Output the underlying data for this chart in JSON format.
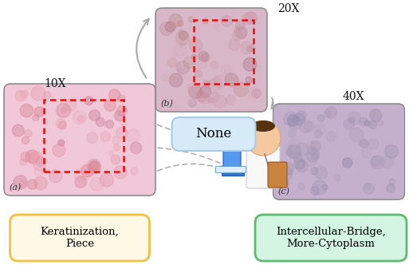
{
  "bg_color": "#ffffff",
  "fig_width": 5.18,
  "fig_height": 3.32,
  "dpi": 100,
  "label_20x": "20X",
  "label_10x": "10X",
  "label_40x": "40X",
  "label_a": "(a)",
  "label_b": "(b)",
  "label_c": "(c)",
  "none_box_text": "None",
  "none_box_color": "#d6eaf8",
  "none_box_edge": "#a9cce3",
  "left_box_text": "Keratinization,\nPiece",
  "left_box_color": "#fef9e7",
  "left_box_edge": "#f0c040",
  "right_box_text": "Intercellular-Bridge,\nMore-Cytoplasm",
  "right_box_color": "#d5f5e3",
  "right_box_edge": "#5dba6e",
  "arrow_color": "#aaaaaa",
  "dashed_rect_color": "#dd1111",
  "img_a_bg": "#f0c8d8",
  "img_b_bg": "#d8b8c8",
  "img_c_bg": "#c4b0cc",
  "img_a_detail1": "#e08090",
  "img_a_detail2": "#c87890",
  "img_b_detail1": "#c890a0",
  "img_b_detail2": "#b07888",
  "img_c_detail1": "#a898b8",
  "img_c_detail2": "#9088a8"
}
